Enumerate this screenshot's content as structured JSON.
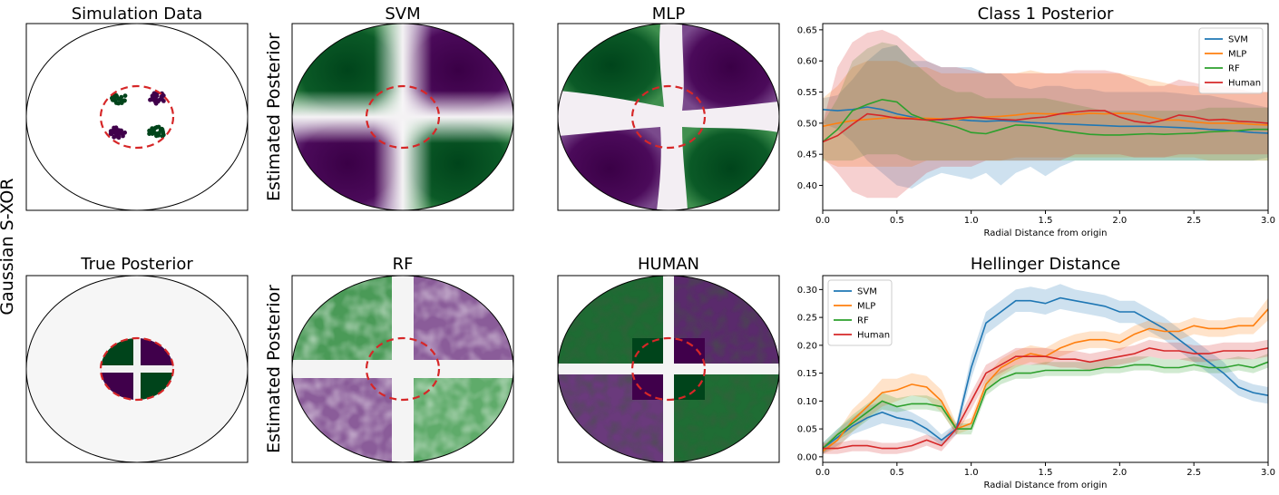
{
  "figure": {
    "row_label": "Gaussian S-XOR",
    "ylabel_estimated": "Estimated Posterior",
    "colors": {
      "green": "#00441b",
      "purple": "#40004b",
      "boundary": "#d62728"
    }
  },
  "panels": {
    "simulation": {
      "title": "Simulation Data"
    },
    "true_posterior": {
      "title": "True Posterior"
    },
    "svm": {
      "title": "SVM",
      "style": "smooth"
    },
    "mlp": {
      "title": "MLP",
      "style": "curved"
    },
    "rf": {
      "title": "RF",
      "style": "patchy"
    },
    "human": {
      "title": "HUMAN",
      "style": "patchy-dark"
    }
  },
  "chart_data": [
    {
      "type": "line",
      "title": "Class 1 Posterior",
      "xlabel": "Radial Distance from origin",
      "ylabel": "",
      "xlim": [
        0,
        3.0
      ],
      "ylim": [
        0.36,
        0.66
      ],
      "xticks": [
        0.0,
        0.5,
        1.0,
        1.5,
        2.0,
        2.5,
        3.0
      ],
      "xtick_labels": [
        "0.0",
        "0.5",
        "1.0",
        "1.5",
        "2.0",
        "2.5",
        "3.0"
      ],
      "yticks": [
        0.4,
        0.45,
        0.5,
        0.55,
        0.6,
        0.65
      ],
      "ytick_labels": [
        "0.40",
        "0.45",
        "0.50",
        "0.55",
        "0.60",
        "0.65"
      ],
      "legend_position": "top-right",
      "x": [
        0.0,
        0.1,
        0.2,
        0.3,
        0.4,
        0.5,
        0.6,
        0.7,
        0.8,
        0.9,
        1.0,
        1.1,
        1.2,
        1.3,
        1.4,
        1.5,
        1.6,
        1.7,
        1.8,
        1.9,
        2.0,
        2.1,
        2.2,
        2.3,
        2.4,
        2.5,
        2.6,
        2.7,
        2.8,
        2.9,
        3.0
      ],
      "series": [
        {
          "name": "SVM",
          "color": "#1f77b4",
          "values": [
            0.522,
            0.52,
            0.522,
            0.526,
            0.522,
            0.515,
            0.51,
            0.506,
            0.505,
            0.506,
            0.504,
            0.503,
            0.504,
            0.503,
            0.501,
            0.5,
            0.499,
            0.498,
            0.497,
            0.496,
            0.495,
            0.495,
            0.495,
            0.494,
            0.493,
            0.492,
            0.49,
            0.489,
            0.487,
            0.485,
            0.484
          ],
          "lower": [
            0.5,
            0.49,
            0.47,
            0.44,
            0.42,
            0.4,
            0.395,
            0.41,
            0.42,
            0.415,
            0.41,
            0.42,
            0.4,
            0.42,
            0.43,
            0.415,
            0.43,
            0.44,
            0.44,
            0.44,
            0.44,
            0.44,
            0.44,
            0.44,
            0.44,
            0.44,
            0.44,
            0.44,
            0.44,
            0.44,
            0.445
          ],
          "upper": [
            0.54,
            0.545,
            0.57,
            0.6,
            0.62,
            0.625,
            0.6,
            0.6,
            0.59,
            0.59,
            0.59,
            0.58,
            0.58,
            0.56,
            0.555,
            0.56,
            0.56,
            0.555,
            0.555,
            0.55,
            0.55,
            0.55,
            0.55,
            0.55,
            0.548,
            0.545,
            0.545,
            0.54,
            0.535,
            0.53,
            0.525
          ]
        },
        {
          "name": "MLP",
          "color": "#ff7f0e",
          "values": [
            0.495,
            0.5,
            0.504,
            0.506,
            0.508,
            0.51,
            0.508,
            0.508,
            0.507,
            0.506,
            0.509,
            0.51,
            0.511,
            0.513,
            0.516,
            0.515,
            0.515,
            0.514,
            0.516,
            0.515,
            0.516,
            0.515,
            0.51,
            0.505,
            0.505,
            0.502,
            0.5,
            0.5,
            0.5,
            0.498,
            0.497
          ],
          "lower": [
            0.44,
            0.43,
            0.43,
            0.43,
            0.43,
            0.43,
            0.43,
            0.44,
            0.44,
            0.44,
            0.44,
            0.44,
            0.44,
            0.445,
            0.445,
            0.445,
            0.445,
            0.445,
            0.445,
            0.445,
            0.445,
            0.445,
            0.445,
            0.445,
            0.445,
            0.445,
            0.44,
            0.44,
            0.44,
            0.44,
            0.44
          ],
          "upper": [
            0.54,
            0.56,
            0.59,
            0.6,
            0.6,
            0.6,
            0.59,
            0.59,
            0.58,
            0.58,
            0.58,
            0.58,
            0.58,
            0.58,
            0.585,
            0.58,
            0.58,
            0.58,
            0.58,
            0.58,
            0.58,
            0.575,
            0.57,
            0.565,
            0.56,
            0.56,
            0.555,
            0.55,
            0.55,
            0.55,
            0.55
          ]
        },
        {
          "name": "RF",
          "color": "#2ca02c",
          "values": [
            0.47,
            0.49,
            0.52,
            0.53,
            0.538,
            0.534,
            0.514,
            0.505,
            0.5,
            0.494,
            0.485,
            0.483,
            0.49,
            0.497,
            0.496,
            0.493,
            0.488,
            0.485,
            0.482,
            0.481,
            0.481,
            0.482,
            0.483,
            0.482,
            0.483,
            0.484,
            0.486,
            0.487,
            0.488,
            0.49,
            0.49
          ],
          "lower": [
            0.44,
            0.44,
            0.44,
            0.45,
            0.45,
            0.45,
            0.44,
            0.44,
            0.44,
            0.44,
            0.44,
            0.44,
            0.44,
            0.44,
            0.44,
            0.44,
            0.44,
            0.44,
            0.44,
            0.44,
            0.44,
            0.44,
            0.44,
            0.44,
            0.44,
            0.44,
            0.44,
            0.44,
            0.44,
            0.44,
            0.44
          ],
          "upper": [
            0.5,
            0.54,
            0.6,
            0.62,
            0.63,
            0.625,
            0.6,
            0.58,
            0.56,
            0.55,
            0.55,
            0.54,
            0.54,
            0.54,
            0.54,
            0.54,
            0.535,
            0.53,
            0.525,
            0.52,
            0.52,
            0.52,
            0.52,
            0.52,
            0.52,
            0.52,
            0.525,
            0.525,
            0.525,
            0.525,
            0.525
          ]
        },
        {
          "name": "Human",
          "color": "#d62728",
          "values": [
            0.47,
            0.48,
            0.498,
            0.515,
            0.512,
            0.508,
            0.507,
            0.505,
            0.506,
            0.508,
            0.51,
            0.508,
            0.506,
            0.505,
            0.508,
            0.51,
            0.515,
            0.518,
            0.52,
            0.52,
            0.51,
            0.503,
            0.5,
            0.505,
            0.513,
            0.51,
            0.505,
            0.506,
            0.503,
            0.502,
            0.5
          ],
          "lower": [
            0.445,
            0.42,
            0.39,
            0.38,
            0.38,
            0.38,
            0.4,
            0.42,
            0.43,
            0.43,
            0.43,
            0.44,
            0.44,
            0.44,
            0.44,
            0.44,
            0.44,
            0.45,
            0.45,
            0.45,
            0.45,
            0.445,
            0.445,
            0.445,
            0.45,
            0.45,
            0.45,
            0.45,
            0.45,
            0.45,
            0.45
          ],
          "upper": [
            0.5,
            0.59,
            0.63,
            0.645,
            0.65,
            0.64,
            0.62,
            0.6,
            0.59,
            0.59,
            0.585,
            0.58,
            0.58,
            0.58,
            0.58,
            0.58,
            0.58,
            0.585,
            0.585,
            0.585,
            0.58,
            0.57,
            0.56,
            0.56,
            0.57,
            0.565,
            0.56,
            0.56,
            0.555,
            0.55,
            0.55
          ]
        }
      ]
    },
    {
      "type": "line",
      "title": "Hellinger Distance",
      "xlabel": "Radial Distance from origin",
      "ylabel": "",
      "xlim": [
        0,
        3.0
      ],
      "ylim": [
        -0.01,
        0.325
      ],
      "xticks": [
        0.0,
        0.5,
        1.0,
        1.5,
        2.0,
        2.5,
        3.0
      ],
      "xtick_labels": [
        "0.0",
        "0.5",
        "1.0",
        "1.5",
        "2.0",
        "2.5",
        "3.0"
      ],
      "yticks": [
        0.0,
        0.05,
        0.1,
        0.15,
        0.2,
        0.25,
        0.3
      ],
      "ytick_labels": [
        "0.00",
        "0.05",
        "0.10",
        "0.15",
        "0.20",
        "0.25",
        "0.30"
      ],
      "legend_position": "top-left",
      "x": [
        0.0,
        0.1,
        0.2,
        0.3,
        0.4,
        0.5,
        0.6,
        0.7,
        0.8,
        0.9,
        1.0,
        1.1,
        1.2,
        1.3,
        1.4,
        1.5,
        1.6,
        1.7,
        1.8,
        1.9,
        2.0,
        2.1,
        2.2,
        2.3,
        2.4,
        2.5,
        2.6,
        2.7,
        2.8,
        2.9,
        3.0
      ],
      "series": [
        {
          "name": "SVM",
          "color": "#1f77b4",
          "values": [
            0.015,
            0.035,
            0.055,
            0.07,
            0.08,
            0.07,
            0.065,
            0.05,
            0.03,
            0.05,
            0.16,
            0.24,
            0.26,
            0.28,
            0.28,
            0.275,
            0.285,
            0.28,
            0.275,
            0.27,
            0.26,
            0.26,
            0.245,
            0.23,
            0.21,
            0.19,
            0.17,
            0.15,
            0.125,
            0.115,
            0.11
          ],
          "lower": [
            0.005,
            0.02,
            0.04,
            0.05,
            0.06,
            0.055,
            0.05,
            0.04,
            0.02,
            0.04,
            0.14,
            0.22,
            0.24,
            0.26,
            0.26,
            0.255,
            0.265,
            0.26,
            0.255,
            0.25,
            0.24,
            0.24,
            0.225,
            0.21,
            0.19,
            0.17,
            0.15,
            0.13,
            0.11,
            0.1,
            0.095
          ],
          "upper": [
            0.025,
            0.05,
            0.07,
            0.09,
            0.1,
            0.09,
            0.08,
            0.065,
            0.04,
            0.06,
            0.18,
            0.26,
            0.28,
            0.3,
            0.305,
            0.3,
            0.31,
            0.3,
            0.295,
            0.29,
            0.28,
            0.28,
            0.265,
            0.25,
            0.23,
            0.21,
            0.19,
            0.17,
            0.14,
            0.13,
            0.125
          ]
        },
        {
          "name": "MLP",
          "color": "#ff7f0e",
          "values": [
            0.01,
            0.03,
            0.065,
            0.09,
            0.115,
            0.12,
            0.13,
            0.125,
            0.1,
            0.05,
            0.06,
            0.13,
            0.16,
            0.175,
            0.185,
            0.18,
            0.195,
            0.205,
            0.21,
            0.21,
            0.205,
            0.22,
            0.23,
            0.225,
            0.225,
            0.235,
            0.23,
            0.23,
            0.235,
            0.235,
            0.265
          ],
          "lower": [
            0.005,
            0.015,
            0.045,
            0.07,
            0.09,
            0.1,
            0.11,
            0.105,
            0.08,
            0.04,
            0.05,
            0.115,
            0.145,
            0.16,
            0.17,
            0.165,
            0.18,
            0.19,
            0.195,
            0.195,
            0.19,
            0.205,
            0.215,
            0.21,
            0.21,
            0.22,
            0.215,
            0.215,
            0.22,
            0.22,
            0.245
          ],
          "upper": [
            0.02,
            0.045,
            0.085,
            0.11,
            0.14,
            0.14,
            0.15,
            0.145,
            0.12,
            0.06,
            0.07,
            0.145,
            0.175,
            0.19,
            0.2,
            0.195,
            0.21,
            0.22,
            0.225,
            0.225,
            0.22,
            0.235,
            0.245,
            0.24,
            0.24,
            0.25,
            0.245,
            0.245,
            0.25,
            0.25,
            0.285
          ]
        },
        {
          "name": "RF",
          "color": "#2ca02c",
          "values": [
            0.015,
            0.04,
            0.06,
            0.08,
            0.1,
            0.09,
            0.095,
            0.095,
            0.09,
            0.05,
            0.05,
            0.12,
            0.14,
            0.15,
            0.15,
            0.155,
            0.155,
            0.155,
            0.155,
            0.16,
            0.16,
            0.165,
            0.165,
            0.16,
            0.16,
            0.165,
            0.16,
            0.16,
            0.165,
            0.16,
            0.17
          ],
          "lower": [
            0.005,
            0.03,
            0.045,
            0.065,
            0.085,
            0.08,
            0.085,
            0.085,
            0.08,
            0.04,
            0.04,
            0.11,
            0.13,
            0.14,
            0.14,
            0.145,
            0.145,
            0.145,
            0.145,
            0.15,
            0.15,
            0.155,
            0.155,
            0.15,
            0.15,
            0.155,
            0.15,
            0.15,
            0.155,
            0.15,
            0.16
          ],
          "upper": [
            0.025,
            0.05,
            0.075,
            0.095,
            0.115,
            0.105,
            0.11,
            0.11,
            0.1,
            0.06,
            0.06,
            0.135,
            0.155,
            0.165,
            0.165,
            0.17,
            0.17,
            0.17,
            0.17,
            0.175,
            0.175,
            0.18,
            0.18,
            0.175,
            0.175,
            0.18,
            0.175,
            0.175,
            0.18,
            0.175,
            0.185
          ]
        },
        {
          "name": "Human",
          "color": "#d62728",
          "values": [
            0.015,
            0.015,
            0.02,
            0.02,
            0.015,
            0.015,
            0.02,
            0.03,
            0.02,
            0.05,
            0.1,
            0.15,
            0.165,
            0.18,
            0.18,
            0.18,
            0.175,
            0.175,
            0.17,
            0.175,
            0.18,
            0.185,
            0.195,
            0.19,
            0.19,
            0.185,
            0.185,
            0.19,
            0.19,
            0.19,
            0.195
          ],
          "lower": [
            0.005,
            0.005,
            0.01,
            0.01,
            0.005,
            0.005,
            0.01,
            0.02,
            0.01,
            0.04,
            0.085,
            0.135,
            0.15,
            0.165,
            0.165,
            0.165,
            0.16,
            0.16,
            0.155,
            0.16,
            0.165,
            0.17,
            0.18,
            0.175,
            0.175,
            0.17,
            0.17,
            0.175,
            0.175,
            0.175,
            0.18
          ],
          "upper": [
            0.025,
            0.025,
            0.03,
            0.03,
            0.025,
            0.025,
            0.03,
            0.04,
            0.03,
            0.06,
            0.115,
            0.165,
            0.18,
            0.195,
            0.195,
            0.195,
            0.19,
            0.19,
            0.185,
            0.19,
            0.195,
            0.2,
            0.21,
            0.205,
            0.205,
            0.2,
            0.2,
            0.205,
            0.205,
            0.205,
            0.21
          ]
        }
      ]
    }
  ]
}
